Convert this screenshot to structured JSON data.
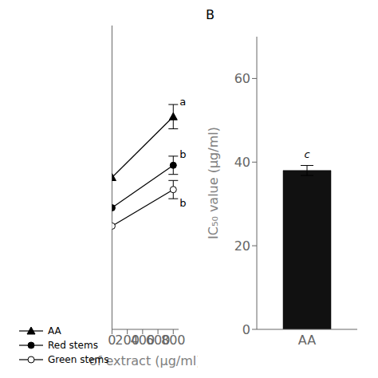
{
  "chart_data": [
    {
      "type": "line",
      "x_label": "of extract (μg/ml)",
      "x": [
        0,
        800
      ],
      "xlim": [
        0,
        870
      ],
      "xticks": [
        0,
        200,
        400,
        600,
        800
      ],
      "ylim": [
        30,
        80
      ],
      "yticks": [],
      "tick_labels": "x",
      "grid": false,
      "legend": "lower left",
      "series": [
        {
          "name": "AA",
          "values": [
            55,
            65
          ],
          "errors": [
            null,
            2.0
          ],
          "color": "#000000",
          "marker": "triangle"
        },
        {
          "name": "Red stems",
          "values": [
            50,
            57
          ],
          "errors": [
            null,
            1.5
          ],
          "color": "#000000",
          "marker": "circle"
        },
        {
          "name": "Green stems",
          "values": [
            47,
            53
          ],
          "errors": [
            null,
            1.5
          ],
          "color": "#000000",
          "marker": "circle-open"
        }
      ],
      "annotations": [
        {
          "x": 800,
          "y": 67.5,
          "text": "a"
        },
        {
          "x": 800,
          "y": 58.8,
          "text": "b"
        },
        {
          "x": 800,
          "y": 50.8,
          "text": "b"
        }
      ]
    },
    {
      "type": "bar",
      "title": "B",
      "y_label": "IC₅₀ value (μg/ml)",
      "categories": [
        "AA"
      ],
      "values": [
        38.0
      ],
      "errors": [
        1.2
      ],
      "color": "#111111",
      "ylim": [
        0,
        70
      ],
      "yticks": [
        0,
        20,
        40,
        60
      ],
      "grid": false,
      "annotations": [
        {
          "category": "AA",
          "text": "c"
        }
      ]
    }
  ]
}
